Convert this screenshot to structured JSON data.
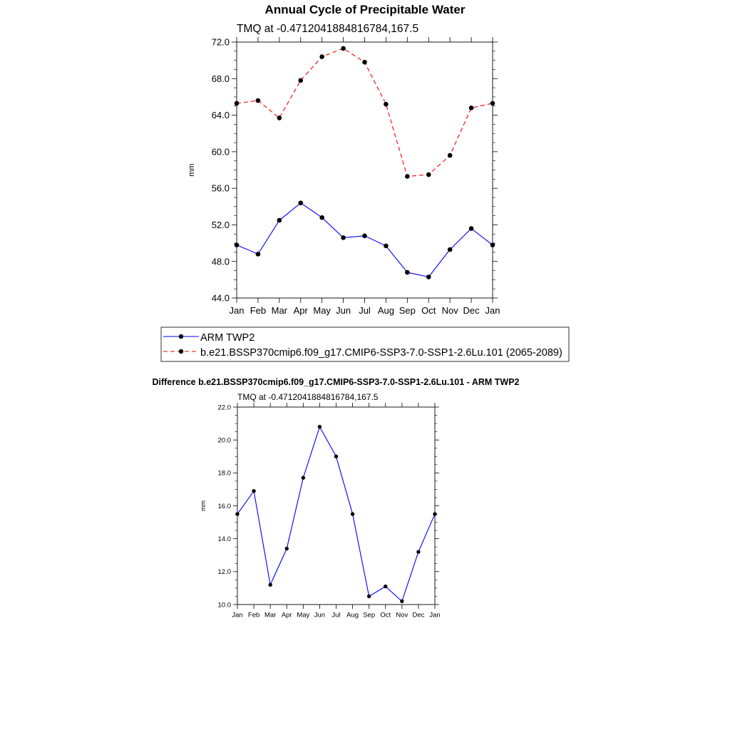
{
  "chart_data": [
    {
      "type": "line",
      "title": "Annual Cycle of Precipitable Water",
      "subtitle": "TMQ at -0.4712041884816784,167.5",
      "ylabel": "mm",
      "xlabel": "",
      "ylim": [
        44.0,
        72.0
      ],
      "yticks": [
        "44.0",
        "48.0",
        "52.0",
        "56.0",
        "60.0",
        "64.0",
        "68.0",
        "72.0"
      ],
      "categories": [
        "Jan",
        "Feb",
        "Mar",
        "Apr",
        "May",
        "Jun",
        "Jul",
        "Aug",
        "Sep",
        "Oct",
        "Nov",
        "Dec",
        "Jan"
      ],
      "series": [
        {
          "name": "ARM TWP2",
          "color": "#0000ff",
          "dash": "solid",
          "values": [
            49.8,
            48.8,
            52.5,
            54.4,
            52.8,
            50.6,
            50.8,
            49.7,
            46.8,
            46.3,
            49.3,
            51.6,
            49.8
          ]
        },
        {
          "name": "b.e21.BSSP370cmip6.f09_g17.CMIP6-SSP3-7.0-SSP1-2.6Lu.101 (2065-2089)",
          "color": "#ff0000",
          "dash": "dashed",
          "values": [
            65.3,
            65.6,
            63.7,
            67.8,
            70.4,
            71.3,
            69.8,
            65.2,
            57.3,
            57.5,
            59.6,
            64.8,
            65.3
          ]
        }
      ]
    },
    {
      "type": "line",
      "title": "Difference b.e21.BSSP370cmip6.f09_g17.CMIP6-SSP3-7.0-SSP1-2.6Lu.101 - ARM TWP2",
      "subtitle": "TMQ at -0.4712041884816784,167.5",
      "ylabel": "mm",
      "xlabel": "",
      "ylim": [
        10.0,
        22.0
      ],
      "yticks": [
        "10.0",
        "12.0",
        "14.0",
        "16.0",
        "18.0",
        "20.0",
        "22.0"
      ],
      "categories": [
        "Jan",
        "Feb",
        "Mar",
        "Apr",
        "May",
        "Jun",
        "Jul",
        "Aug",
        "Sep",
        "Oct",
        "Nov",
        "Dec",
        "Jan"
      ],
      "series": [
        {
          "name": "Difference",
          "color": "#0000ff",
          "dash": "solid",
          "values": [
            15.5,
            16.9,
            11.2,
            13.4,
            17.7,
            20.8,
            19.0,
            15.5,
            10.5,
            11.1,
            10.2,
            13.2,
            15.5
          ]
        }
      ]
    }
  ]
}
